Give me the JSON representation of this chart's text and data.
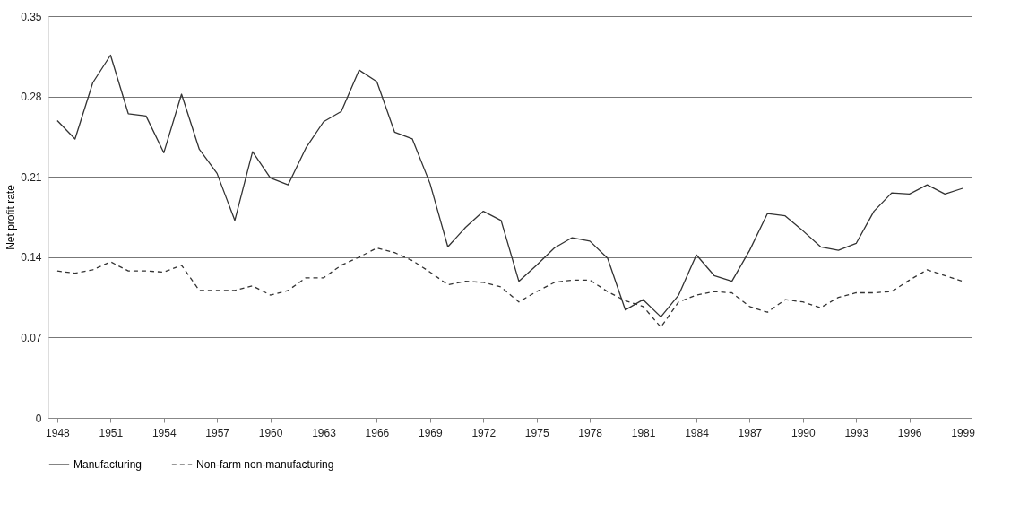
{
  "chart_data": {
    "type": "line",
    "ylabel": "Net profit rate",
    "x": [
      1948,
      1949,
      1950,
      1951,
      1952,
      1953,
      1954,
      1955,
      1956,
      1957,
      1958,
      1959,
      1960,
      1961,
      1962,
      1963,
      1964,
      1965,
      1966,
      1967,
      1968,
      1969,
      1970,
      1971,
      1972,
      1973,
      1974,
      1975,
      1976,
      1977,
      1978,
      1979,
      1980,
      1981,
      1982,
      1983,
      1984,
      1985,
      1986,
      1987,
      1988,
      1989,
      1990,
      1991,
      1992,
      1993,
      1994,
      1995,
      1996,
      1997,
      1998,
      1999
    ],
    "series": [
      {
        "name": "Manufacturing",
        "color": "#333333",
        "line_style": "solid",
        "values": [
          0.259,
          0.243,
          0.292,
          0.316,
          0.265,
          0.263,
          0.231,
          0.282,
          0.234,
          0.213,
          0.172,
          0.232,
          0.209,
          0.203,
          0.235,
          0.258,
          0.267,
          0.303,
          0.293,
          0.249,
          0.243,
          0.204,
          0.149,
          0.166,
          0.18,
          0.172,
          0.119,
          0.133,
          0.148,
          0.157,
          0.154,
          0.139,
          0.094,
          0.103,
          0.088,
          0.107,
          0.142,
          0.124,
          0.119,
          0.146,
          0.178,
          0.176,
          0.163,
          0.149,
          0.146,
          0.152,
          0.18,
          0.196,
          0.195,
          0.203,
          0.195,
          0.2
        ]
      },
      {
        "name": "Non-farm non-manufacturing",
        "color": "#333333",
        "line_style": "dashed",
        "values": [
          0.128,
          0.126,
          0.129,
          0.136,
          0.128,
          0.128,
          0.127,
          0.133,
          0.111,
          0.111,
          0.111,
          0.115,
          0.107,
          0.111,
          0.122,
          0.122,
          0.133,
          0.14,
          0.148,
          0.144,
          0.137,
          0.127,
          0.116,
          0.119,
          0.118,
          0.114,
          0.101,
          0.11,
          0.118,
          0.12,
          0.12,
          0.11,
          0.102,
          0.097,
          0.079,
          0.101,
          0.107,
          0.11,
          0.109,
          0.097,
          0.092,
          0.103,
          0.101,
          0.096,
          0.105,
          0.109,
          0.109,
          0.11,
          0.12,
          0.129,
          0.124,
          0.119
        ]
      }
    ],
    "xlim": [
      1947.5,
      1999.5
    ],
    "xticks": [
      1948,
      1951,
      1954,
      1957,
      1960,
      1963,
      1966,
      1969,
      1972,
      1975,
      1978,
      1981,
      1984,
      1987,
      1990,
      1993,
      1996,
      1999
    ],
    "ylim": [
      0,
      0.35
    ],
    "yticks": [
      0,
      0.07,
      0.14,
      0.21,
      0.28,
      0.35
    ],
    "grid": "y",
    "legend": "bottom",
    "marker": "none"
  }
}
